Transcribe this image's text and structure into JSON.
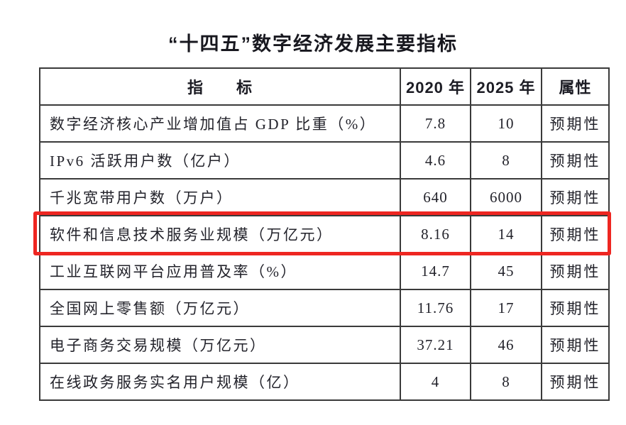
{
  "title": "“十四五”数字经济发展主要指标",
  "table": {
    "headers": {
      "indicator": "指　　标",
      "y2020": "2020 年",
      "y2025": "2025 年",
      "attribute": "属性"
    },
    "rows": [
      {
        "indicator": "数字经济核心产业增加值占 GDP 比重（%）",
        "y2020": "7.8",
        "y2025": "10",
        "attribute": "预期性"
      },
      {
        "indicator": "IPv6 活跃用户数（亿户）",
        "y2020": "4.6",
        "y2025": "8",
        "attribute": "预期性"
      },
      {
        "indicator": "千兆宽带用户数（万户）",
        "y2020": "640",
        "y2025": "6000",
        "attribute": "预期性"
      },
      {
        "indicator": "软件和信息技术服务业规模（万亿元）",
        "y2020": "8.16",
        "y2025": "14",
        "attribute": "预期性",
        "highlighted": true
      },
      {
        "indicator": "工业互联网平台应用普及率（%）",
        "y2020": "14.7",
        "y2025": "45",
        "attribute": "预期性"
      },
      {
        "indicator": "全国网上零售额（万亿元）",
        "y2020": "11.76",
        "y2025": "17",
        "attribute": "预期性"
      },
      {
        "indicator": "电子商务交易规模（万亿元）",
        "y2020": "37.21",
        "y2025": "46",
        "attribute": "预期性"
      },
      {
        "indicator": "在线政务服务实名用户规模（亿）",
        "y2020": "4",
        "y2025": "8",
        "attribute": "预期性"
      }
    ]
  },
  "highlight": {
    "highlighted_row_index": 3,
    "color": "#ee2621"
  }
}
